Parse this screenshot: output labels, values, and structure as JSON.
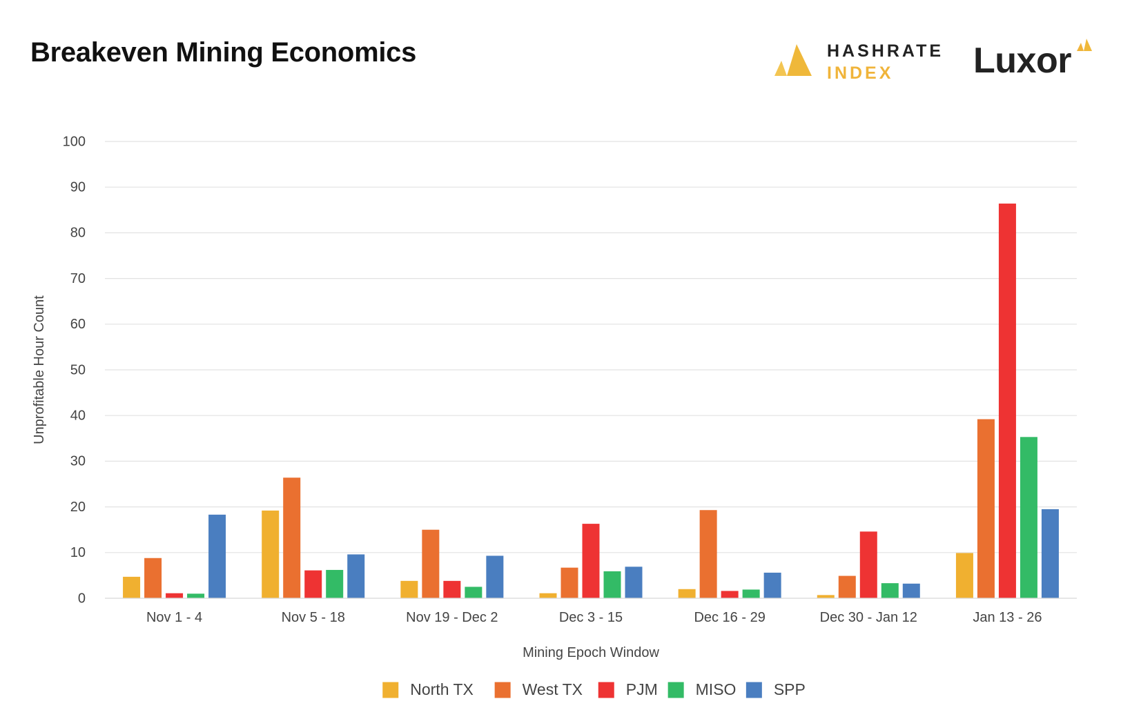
{
  "page": {
    "title": "Breakeven Mining Economics",
    "logos": {
      "hashrate_line1": "HASHRATE",
      "hashrate_line2": "INDEX",
      "luxor": "Luxor"
    }
  },
  "chart_data": {
    "type": "bar",
    "title": "Breakeven Mining Economics",
    "xlabel": "Mining Epoch Window",
    "ylabel": "Unprofitable Hour Count",
    "ylim": [
      0,
      100
    ],
    "yticks": [
      0,
      10,
      20,
      30,
      40,
      50,
      60,
      70,
      80,
      90,
      100
    ],
    "grid": true,
    "legend_position": "bottom-center",
    "categories": [
      "Nov 1 - 4",
      "Nov 5 - 18",
      "Nov 19 - Dec 2",
      "Dec 3 - 15",
      "Dec 16 - 29",
      "Dec 30 - Jan 12",
      "Jan 13 - 26"
    ],
    "series": [
      {
        "name": "North TX",
        "color": "#f0b030",
        "values": [
          4.7,
          19.2,
          3.8,
          1.1,
          2.0,
          0.7,
          9.9
        ]
      },
      {
        "name": "West TX",
        "color": "#ea7030",
        "values": [
          8.8,
          26.4,
          15.0,
          6.7,
          19.3,
          4.9,
          39.2
        ]
      },
      {
        "name": "PJM",
        "color": "#ee3333",
        "values": [
          1.1,
          6.1,
          3.8,
          16.3,
          1.6,
          14.6,
          86.4
        ]
      },
      {
        "name": "MISO",
        "color": "#33bb66",
        "values": [
          1.0,
          6.2,
          2.5,
          5.9,
          1.9,
          3.3,
          35.3
        ]
      },
      {
        "name": "SPP",
        "color": "#4a7ec0",
        "values": [
          18.3,
          9.6,
          9.3,
          6.9,
          5.6,
          3.2,
          19.5
        ]
      }
    ]
  }
}
